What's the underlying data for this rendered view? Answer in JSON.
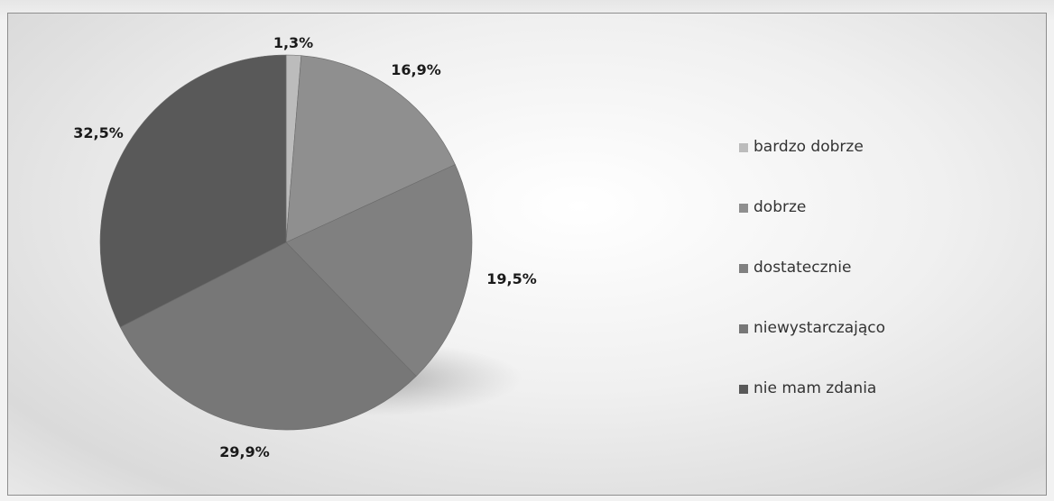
{
  "chart_data": {
    "type": "pie",
    "title": "",
    "slices": [
      {
        "label": "bardzo dobrze",
        "value": 1.3,
        "display": "1,3%",
        "color": "#bcbcbc"
      },
      {
        "label": "dobrze",
        "value": 16.9,
        "display": "16,9%",
        "color": "#8f8f8f"
      },
      {
        "label": "dostatecznie",
        "value": 19.5,
        "display": "19,5%",
        "color": "#808080"
      },
      {
        "label": "niewystarczająco",
        "value": 29.9,
        "display": "29,9%",
        "color": "#777777"
      },
      {
        "label": "nie mam zdania",
        "value": 32.5,
        "display": "32,5%",
        "color": "#595959"
      }
    ],
    "legend_position": "right"
  }
}
